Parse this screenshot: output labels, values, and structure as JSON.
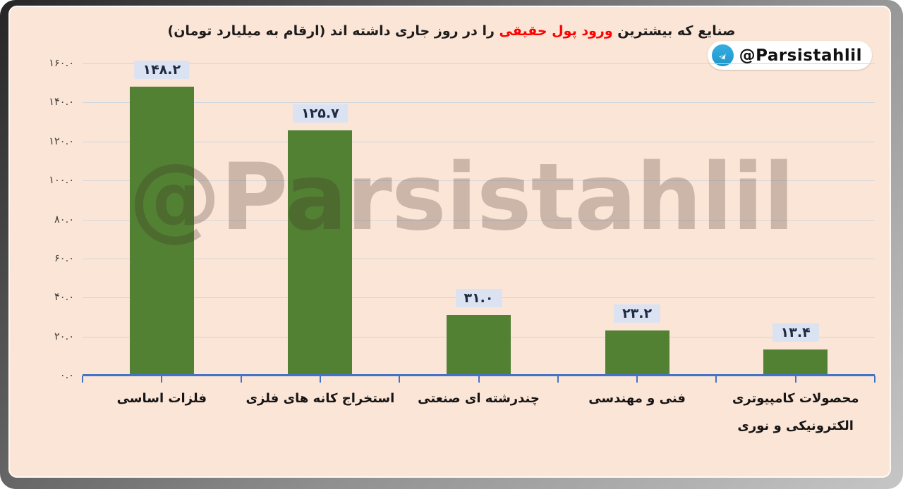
{
  "title": {
    "part1": "صنایع که بیشترین",
    "highlight": "ورود پول حقیقی",
    "part2": "را در روز جاری داشته اند (ارقام به میلیارد تومان)"
  },
  "badge": {
    "icon": "telegram-icon",
    "handle": "@Parsistahlil"
  },
  "watermark": "@Parsistahlil",
  "colors": {
    "background": "#fbe5d7",
    "bar": "#528133",
    "axis": "#4472c4",
    "grid": "#d2d6db",
    "value_label_box": "#dbe3f3",
    "title_highlight": "#ff0000",
    "telegram_blue": "#2ea3d6"
  },
  "chart_data": {
    "type": "bar",
    "title": "صنایع که بیشترین ورود پول حقیقی را در روز جاری داشته اند (ارقام به میلیارد تومان)",
    "categories": [
      "فلزات اساسی",
      "استخراج کانه های فلزی",
      "چندرشته ای صنعتی",
      "فنی و مهندسی",
      "محصولات کامپیوتری الکترونیکی و نوری"
    ],
    "values": [
      148.2,
      125.7,
      31.0,
      23.2,
      13.4
    ],
    "value_labels": [
      "۱۴۸.۲",
      "۱۲۵.۷",
      "۳۱.۰",
      "۲۳.۲",
      "۱۳.۴"
    ],
    "ylim": [
      0,
      160
    ],
    "y_step": 20,
    "y_tick_labels": [
      "۱۶۰.۰",
      "۱۴۰.۰",
      "۱۲۰.۰",
      "۱۰۰.۰",
      "۸۰.۰",
      "۶۰.۰",
      "۴۰.۰",
      "۲۰.۰",
      "۰.۰"
    ],
    "grid": true,
    "legend": false,
    "bar_color": "#528133"
  }
}
